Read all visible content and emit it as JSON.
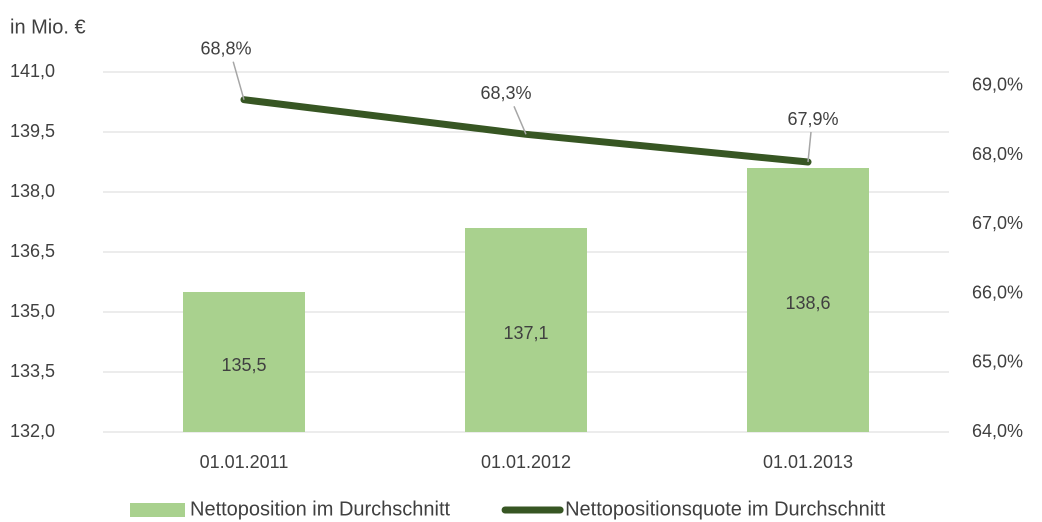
{
  "chart_data": {
    "type": "bar",
    "unit_label": "in Mio. €",
    "categories": [
      "01.01.2011",
      "01.01.2012",
      "01.01.2013"
    ],
    "series": [
      {
        "name": "Nettoposition im Durchschnitt",
        "type": "bar",
        "color": "#a9d18e",
        "values": [
          135.5,
          137.1,
          138.6
        ],
        "value_labels": [
          "135,5",
          "137,1",
          "138,6"
        ]
      },
      {
        "name": "Nettopositionsquote im Durchschnitt",
        "type": "line",
        "axis": "y2",
        "color": "#375623",
        "values": [
          68.8,
          68.3,
          67.9
        ],
        "value_labels": [
          "68,8%",
          "68,3%",
          "67,9%"
        ]
      }
    ],
    "ylim": [
      132,
      141
    ],
    "yticks": [
      {
        "value": 132,
        "label": "132,0"
      },
      {
        "value": 133.5,
        "label": "133,5"
      },
      {
        "value": 135,
        "label": "135,0"
      },
      {
        "value": 136.5,
        "label": "136,5"
      },
      {
        "value": 138,
        "label": "138,0"
      },
      {
        "value": 139.5,
        "label": "139,5"
      },
      {
        "value": 141,
        "label": "141,0"
      }
    ],
    "y2lim": [
      64,
      69.2
    ],
    "y2ticks": [
      {
        "value": 64,
        "label": "64,0%"
      },
      {
        "value": 65,
        "label": "65,0%"
      },
      {
        "value": 66,
        "label": "66,0%"
      },
      {
        "value": 67,
        "label": "67,0%"
      },
      {
        "value": 68,
        "label": "68,0%"
      },
      {
        "value": 69,
        "label": "69,0%"
      }
    ],
    "grid": true,
    "legend": "bottom"
  }
}
